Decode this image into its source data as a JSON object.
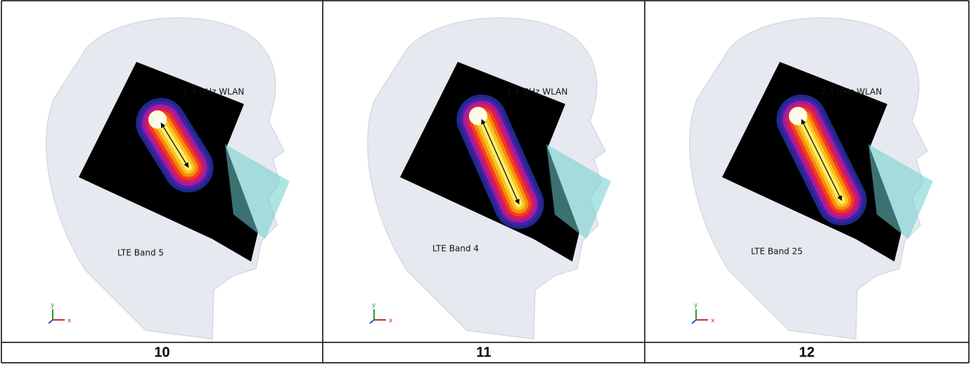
{
  "panels": [
    {
      "top_label": "2.4 GHz WLAN",
      "bottom_label": "LTE Band 5",
      "axis_y": "y",
      "axis_x": "x",
      "caption": "10"
    },
    {
      "top_label": "2.4 GHz WLAN",
      "bottom_label": "LTE Band 4",
      "axis_y": "y",
      "axis_x": "x",
      "caption": "11"
    },
    {
      "top_label": "2.4 GHz WLAN",
      "bottom_label": "LTE Band 25",
      "axis_y": "y",
      "axis_x": "x",
      "caption": "12"
    }
  ]
}
